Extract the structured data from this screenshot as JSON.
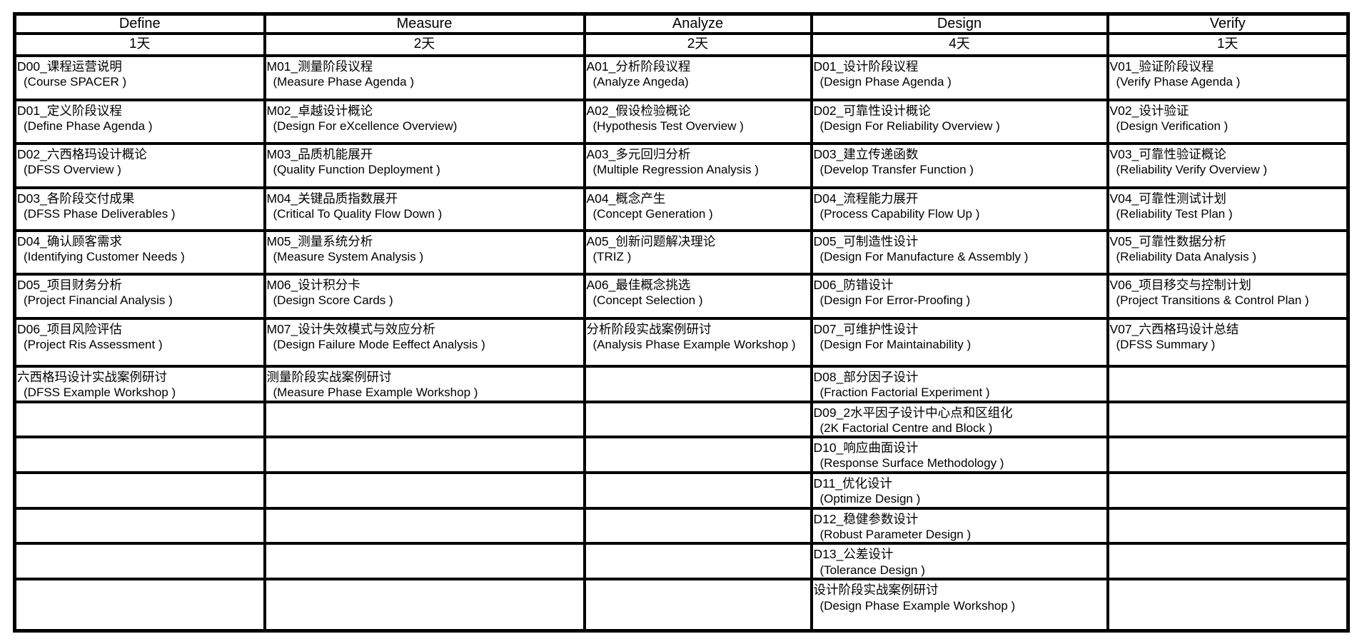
{
  "page": {
    "background": "#ffffff",
    "border_color": "#000000",
    "text_color": "#000000"
  },
  "table": {
    "phases": [
      {
        "name": "Define",
        "days": "1天",
        "modules": [
          {
            "cn": "D00_课程运营说明",
            "en": "(Course SPACER )"
          },
          {
            "cn": "D01_定义阶段议程",
            "en": "(Define Phase Agenda )"
          },
          {
            "cn": "D02_六西格玛设计概论",
            "en": "(DFSS Overview )"
          },
          {
            "cn": "D03_各阶段交付成果",
            "en": "(DFSS Phase Deliverables )"
          },
          {
            "cn": "D04_确认顾客需求",
            "en": "(Identifying Customer Needs )"
          },
          {
            "cn": "D05_项目财务分析",
            "en": "(Project Financial Analysis )"
          },
          {
            "cn": "D06_项目风险评估",
            "en": "(Project Ris Assessment )"
          },
          {
            "cn": "六西格玛设计实战案例研讨",
            "en": "(DFSS Example Workshop )"
          },
          {
            "cn": "",
            "en": ""
          },
          {
            "cn": "",
            "en": ""
          },
          {
            "cn": "",
            "en": ""
          },
          {
            "cn": "",
            "en": ""
          },
          {
            "cn": "",
            "en": ""
          },
          {
            "cn": "",
            "en": ""
          }
        ]
      },
      {
        "name": "Measure",
        "days": "2天",
        "modules": [
          {
            "cn": "M01_测量阶段议程",
            "en": "(Measure Phase Agenda )"
          },
          {
            "cn": "M02_卓越设计概论",
            "en": "(Design For eXcellence Overview)"
          },
          {
            "cn": "M03_品质机能展开",
            "en": "(Quality Function Deployment )"
          },
          {
            "cn": "M04_关键品质指数展开",
            "en": "(Critical To Quality Flow Down )"
          },
          {
            "cn": "M05_测量系统分析",
            "en": "(Measure System Analysis )"
          },
          {
            "cn": "M06_设计积分卡",
            "en": "(Design Score Cards )"
          },
          {
            "cn": "M07_设计失效模式与效应分析",
            "en": "(Design Failure Mode Eeffect Analysis )"
          },
          {
            "cn": "测量阶段实战案例研讨",
            "en": "(Measure Phase Example Workshop )"
          },
          {
            "cn": "",
            "en": ""
          },
          {
            "cn": "",
            "en": ""
          },
          {
            "cn": "",
            "en": ""
          },
          {
            "cn": "",
            "en": ""
          },
          {
            "cn": "",
            "en": ""
          },
          {
            "cn": "",
            "en": ""
          }
        ]
      },
      {
        "name": "Analyze",
        "days": "2天",
        "modules": [
          {
            "cn": "A01_分析阶段议程",
            "en": "(Analyze Angeda)"
          },
          {
            "cn": "A02_假设检验概论",
            "en": "(Hypothesis Test Overview )"
          },
          {
            "cn": "A03_多元回归分析",
            "en": "(Multiple Regression Analysis )"
          },
          {
            "cn": "A04_概念产生",
            "en": "(Concept Generation )"
          },
          {
            "cn": "A05_创新问题解决理论",
            "en": "(TRIZ )"
          },
          {
            "cn": "A06_最佳概念挑选",
            "en": "(Concept Selection )"
          },
          {
            "cn": "分析阶段实战案例研讨",
            "en": "(Analysis Phase Example Workshop )"
          },
          {
            "cn": "",
            "en": ""
          },
          {
            "cn": "",
            "en": ""
          },
          {
            "cn": "",
            "en": ""
          },
          {
            "cn": "",
            "en": ""
          },
          {
            "cn": "",
            "en": ""
          },
          {
            "cn": "",
            "en": ""
          },
          {
            "cn": "",
            "en": ""
          }
        ]
      },
      {
        "name": "Design",
        "days": "4天",
        "modules": [
          {
            "cn": "D01_设计阶段议程",
            "en": "(Design Phase Agenda )"
          },
          {
            "cn": "D02_可靠性设计概论",
            "en": "(Design For Reliability Overview )"
          },
          {
            "cn": "D03_建立传递函数",
            "en": "(Develop Transfer Function )"
          },
          {
            "cn": "D04_流程能力展开",
            "en": "(Process Capability Flow Up )"
          },
          {
            "cn": "D05_可制造性设计",
            "en": "(Design For Manufacture & Assembly )"
          },
          {
            "cn": "D06_防错设计",
            "en": "(Design For Error-Proofing )"
          },
          {
            "cn": "D07_可维护性设计",
            "en": "(Design For Maintainability )"
          },
          {
            "cn": "D08_部分因子设计",
            "en": "(Fraction Factorial Experiment )"
          },
          {
            "cn": "D09_2水平因子设计中心点和区组化",
            "en": "(2K Factorial Centre and Block )"
          },
          {
            "cn": "D10_响应曲面设计",
            "en": "(Response Surface Methodology )"
          },
          {
            "cn": "D11_优化设计",
            "en": "(Optimize Design )"
          },
          {
            "cn": "D12_稳健参数设计",
            "en": "(Robust Parameter Design )"
          },
          {
            "cn": "D13_公差设计",
            "en": "(Tolerance Design )"
          },
          {
            "cn": "设计阶段实战案例研讨",
            "en": "(Design Phase Example Workshop )"
          }
        ]
      },
      {
        "name": "Verify",
        "days": "1天",
        "modules": [
          {
            "cn": "V01_验证阶段议程",
            "en": "(Verify Phase Agenda )"
          },
          {
            "cn": "V02_设计验证",
            "en": "(Design Verification )"
          },
          {
            "cn": "V03_可靠性验证概论",
            "en": "(Reliability Verify Overview )"
          },
          {
            "cn": "V04_可靠性测试计划",
            "en": "(Reliability Test Plan )"
          },
          {
            "cn": "V05_可靠性数据分析",
            "en": "(Reliability Data Analysis )"
          },
          {
            "cn": "V06_项目移交与控制计划",
            "en": "(Project Transitions & Control Plan )"
          },
          {
            "cn": "V07_六西格玛设计总结",
            "en": "(DFSS Summary )"
          },
          {
            "cn": "",
            "en": ""
          },
          {
            "cn": "",
            "en": ""
          },
          {
            "cn": "",
            "en": ""
          },
          {
            "cn": "",
            "en": ""
          },
          {
            "cn": "",
            "en": ""
          },
          {
            "cn": "",
            "en": ""
          },
          {
            "cn": "",
            "en": ""
          }
        ]
      }
    ]
  }
}
